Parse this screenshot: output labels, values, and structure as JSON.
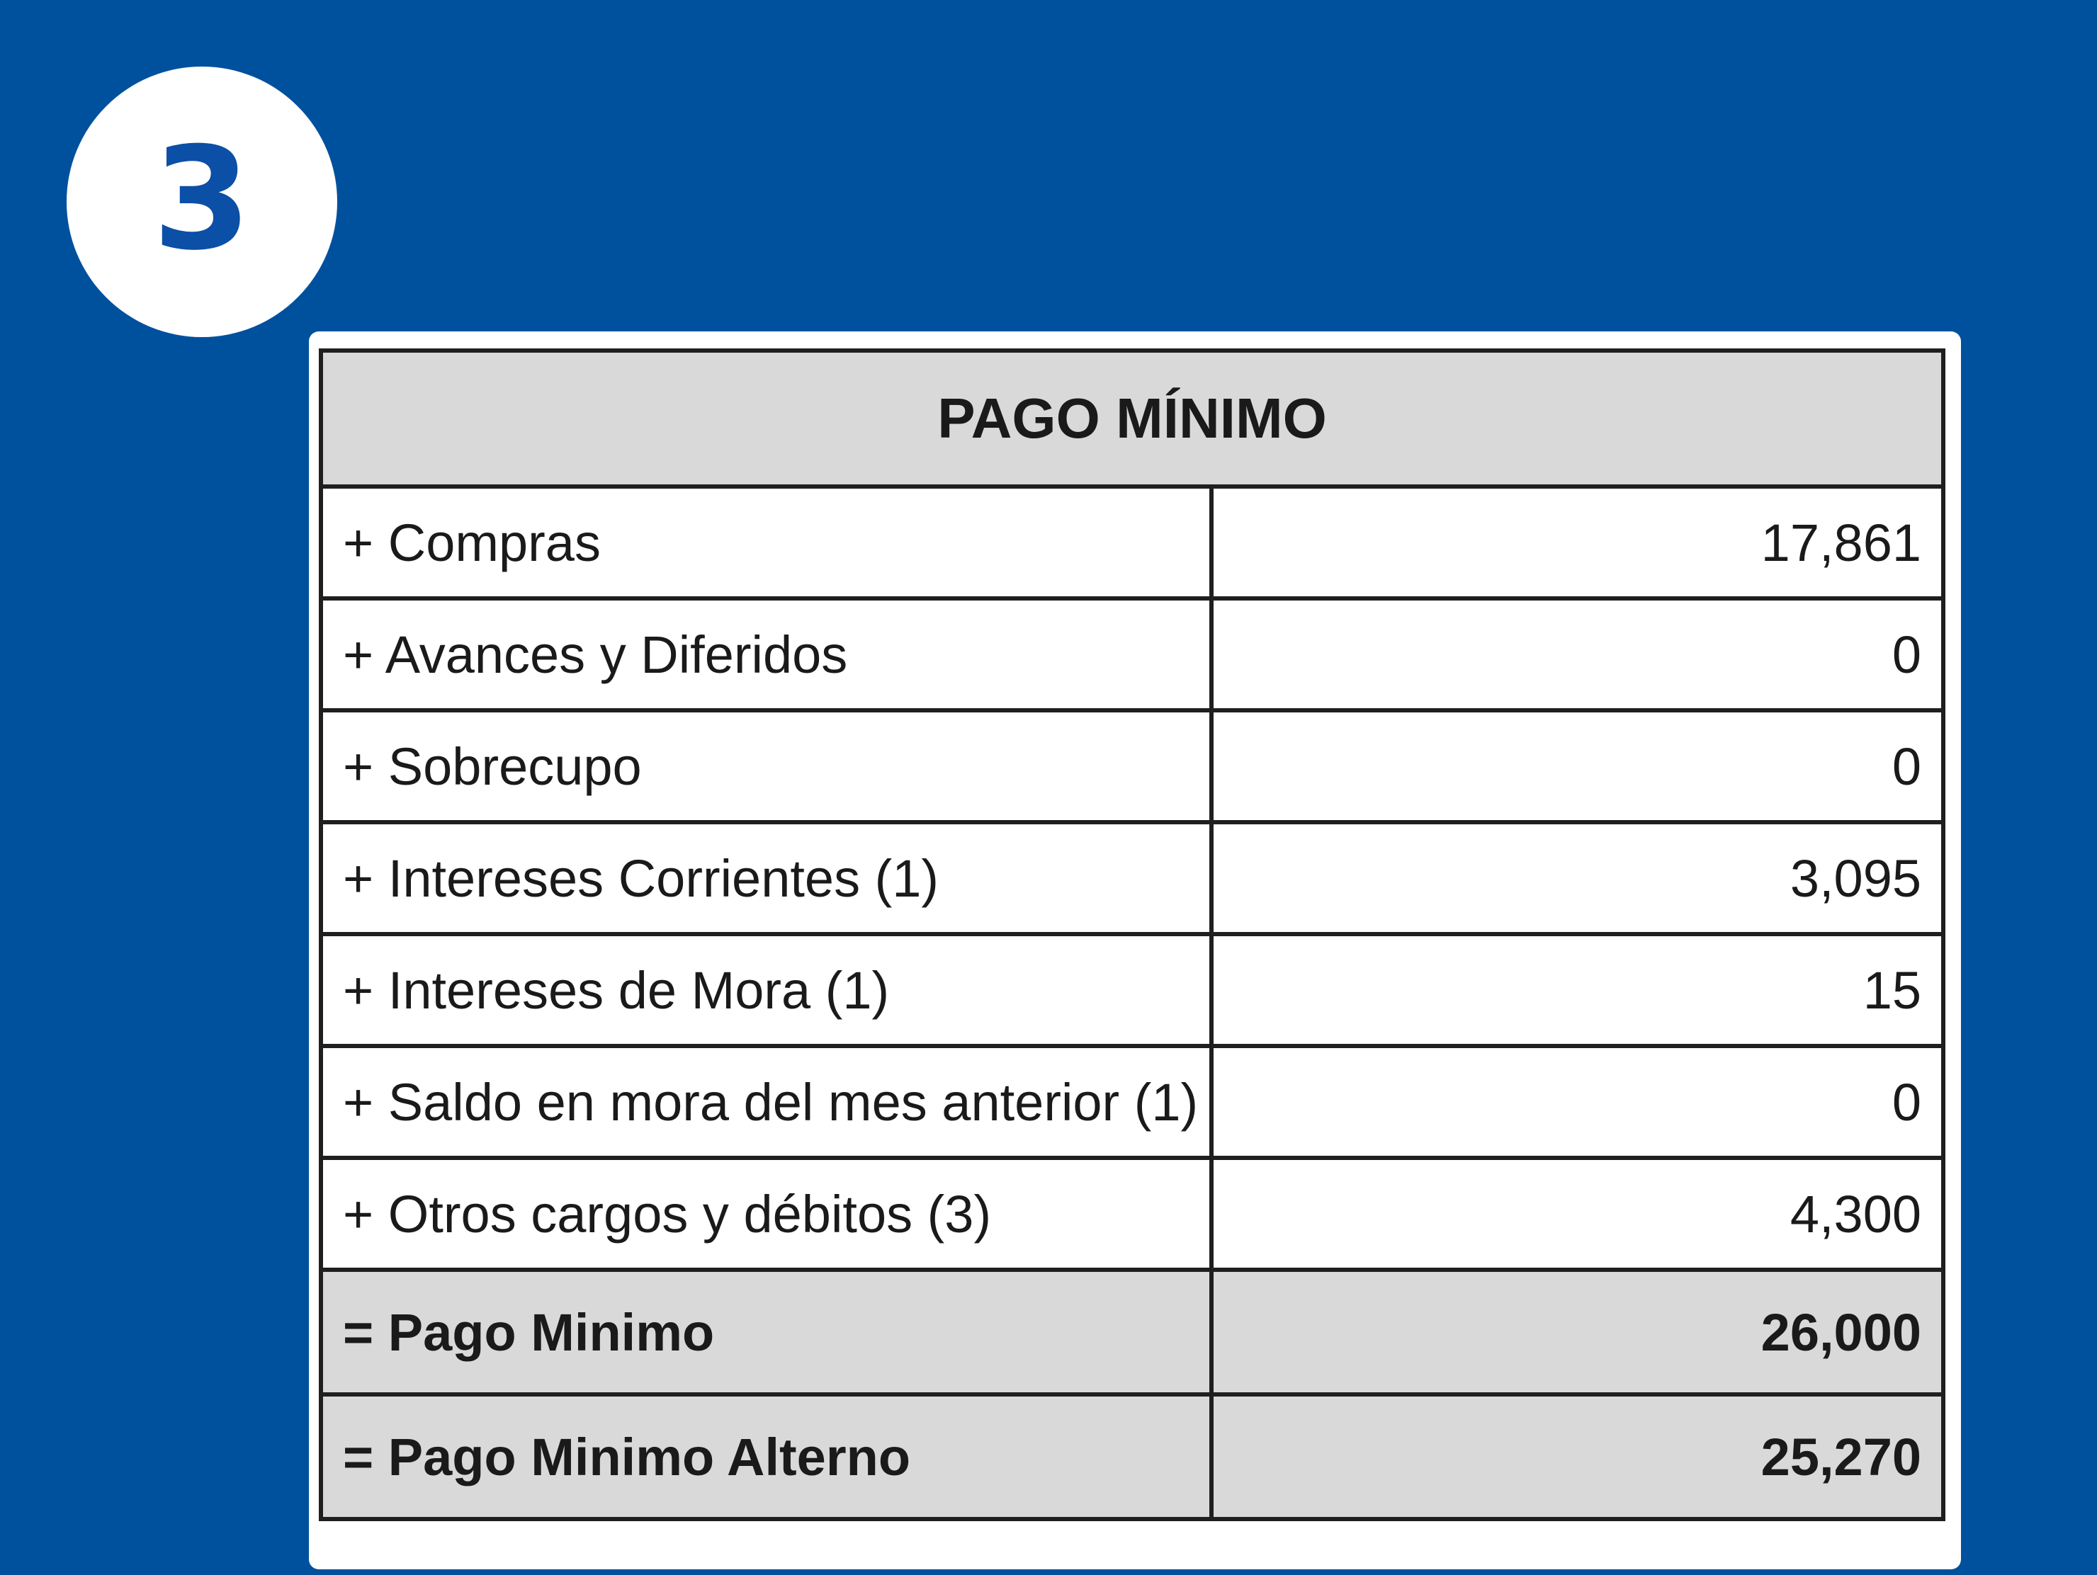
{
  "step": {
    "number": "3"
  },
  "table": {
    "title": "PAGO MÍNIMO",
    "rows": [
      {
        "label": "+ Compras",
        "value": "17,861"
      },
      {
        "label": "+ Avances y Diferidos",
        "value": "0"
      },
      {
        "label": "+ Sobrecupo",
        "value": "0"
      },
      {
        "label": "+ Intereses Corrientes (1)",
        "value": "3,095"
      },
      {
        "label": "+ Intereses de Mora (1)",
        "value": "15"
      },
      {
        "label": "+ Saldo en mora del mes anterior (1)",
        "value": "0"
      },
      {
        "label": "+ Otros cargos y débitos (3)",
        "value": "4,300"
      }
    ],
    "totals": [
      {
        "label": "= Pago Minimo",
        "value": "26,000"
      },
      {
        "label": "= Pago Minimo Alterno",
        "value": "25,270"
      }
    ]
  },
  "colors": {
    "background": "#00519d",
    "badge_text": "#0b4fa6",
    "header_fill": "#d9d9d9"
  }
}
